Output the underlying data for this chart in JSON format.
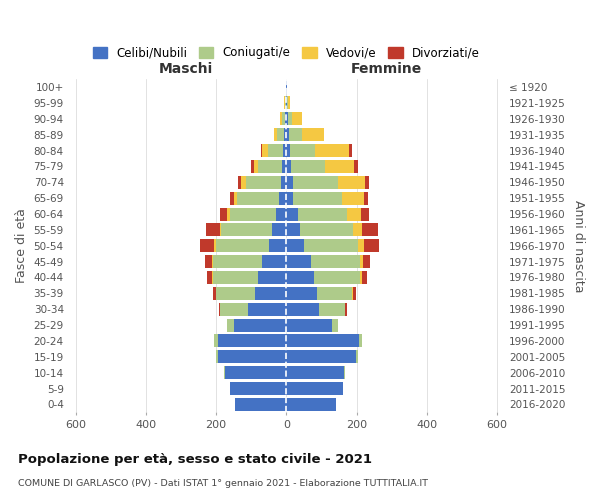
{
  "age_groups": [
    "0-4",
    "5-9",
    "10-14",
    "15-19",
    "20-24",
    "25-29",
    "30-34",
    "35-39",
    "40-44",
    "45-49",
    "50-54",
    "55-59",
    "60-64",
    "65-69",
    "70-74",
    "75-79",
    "80-84",
    "85-89",
    "90-94",
    "95-99",
    "100+"
  ],
  "birth_years": [
    "2016-2020",
    "2011-2015",
    "2006-2010",
    "2001-2005",
    "1996-2000",
    "1991-1995",
    "1986-1990",
    "1981-1985",
    "1976-1980",
    "1971-1975",
    "1966-1970",
    "1961-1965",
    "1956-1960",
    "1951-1955",
    "1946-1950",
    "1941-1945",
    "1936-1940",
    "1931-1935",
    "1926-1930",
    "1921-1925",
    "≤ 1920"
  ],
  "maschi_celibi": [
    145,
    160,
    175,
    195,
    195,
    150,
    110,
    90,
    80,
    70,
    50,
    40,
    30,
    20,
    16,
    12,
    8,
    6,
    4,
    2,
    1
  ],
  "maschi_coniugati": [
    0,
    0,
    2,
    5,
    10,
    20,
    80,
    110,
    130,
    140,
    150,
    145,
    130,
    120,
    100,
    70,
    45,
    20,
    8,
    2,
    0
  ],
  "maschi_vedovi": [
    0,
    0,
    0,
    0,
    0,
    0,
    0,
    1,
    2,
    3,
    5,
    5,
    8,
    10,
    12,
    10,
    15,
    10,
    5,
    2,
    0
  ],
  "maschi_divorziati": [
    0,
    0,
    0,
    0,
    0,
    0,
    2,
    8,
    15,
    20,
    40,
    40,
    20,
    10,
    10,
    8,
    5,
    0,
    0,
    0,
    0
  ],
  "femmine_celibi": [
    142,
    162,
    165,
    198,
    208,
    130,
    92,
    88,
    80,
    70,
    50,
    40,
    32,
    20,
    18,
    14,
    10,
    8,
    5,
    2,
    1
  ],
  "femmine_coniugati": [
    0,
    0,
    2,
    5,
    8,
    18,
    75,
    100,
    130,
    140,
    155,
    150,
    140,
    140,
    130,
    95,
    72,
    38,
    12,
    3,
    0
  ],
  "femmine_vedovi": [
    0,
    0,
    0,
    0,
    0,
    0,
    0,
    2,
    5,
    8,
    15,
    25,
    40,
    60,
    75,
    85,
    98,
    62,
    28,
    5,
    1
  ],
  "femmine_divorziati": [
    0,
    0,
    0,
    0,
    0,
    0,
    5,
    8,
    15,
    20,
    45,
    45,
    25,
    12,
    12,
    10,
    8,
    0,
    0,
    0,
    0
  ],
  "colors": {
    "celibi": "#4472C4",
    "coniugati": "#AECB8A",
    "vedovi": "#F5C842",
    "divorziati": "#C0392B"
  },
  "title": "Popolazione per età, sesso e stato civile - 2021",
  "subtitle": "COMUNE DI GARLASCO (PV) - Dati ISTAT 1° gennaio 2021 - Elaborazione TUTTITALIA.IT",
  "xlabel_left": "Maschi",
  "xlabel_right": "Femmine",
  "ylabel_left": "Fasce di età",
  "ylabel_right": "Anni di nascita",
  "xlim": 620,
  "xticks": [
    -600,
    -400,
    -200,
    0,
    200,
    400,
    600
  ],
  "legend_labels": [
    "Celibi/Nubili",
    "Coniugati/e",
    "Vedovi/e",
    "Divorziati/e"
  ],
  "bg_color": "#ffffff",
  "grid_color": "#cccccc"
}
